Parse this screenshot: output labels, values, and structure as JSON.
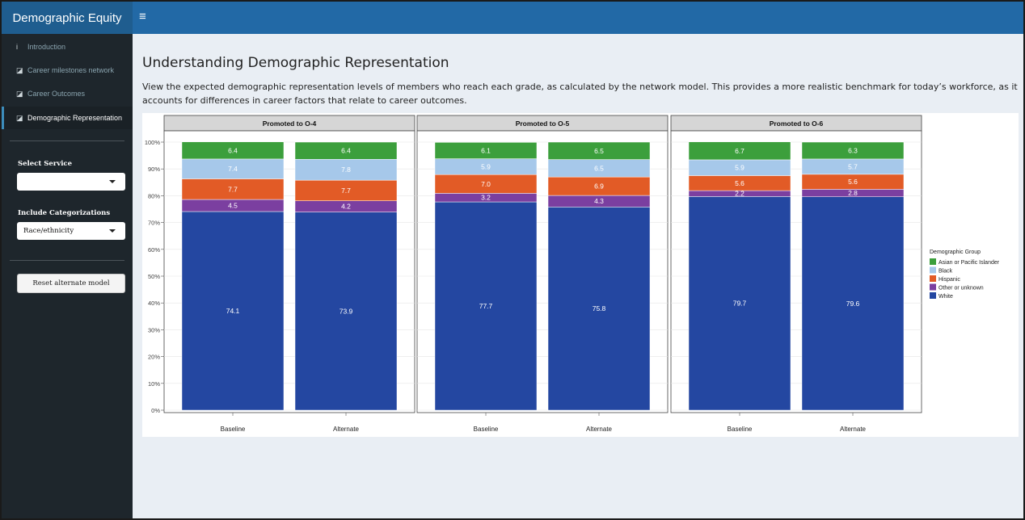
{
  "app": {
    "brand": "Demographic Equity",
    "menu_icon": "hamburger-icon",
    "menu_glyph": "≡"
  },
  "sidebar": {
    "items": [
      {
        "label": "Introduction",
        "icon": "info-icon",
        "glyph": "i"
      },
      {
        "label": "Career milestones network",
        "icon": "line-chart-icon",
        "glyph": "◪"
      },
      {
        "label": "Career Outcomes",
        "icon": "line-chart-icon",
        "glyph": "◪"
      },
      {
        "label": "Demographic Representation",
        "icon": "line-chart-icon",
        "glyph": "◪",
        "active": true
      }
    ],
    "select_service": {
      "label": "Select Service",
      "value": ""
    },
    "include_categorizations": {
      "label": "Include Categorizations",
      "value": "Race/ethnicity"
    },
    "reset_button": "Reset alternate model"
  },
  "main": {
    "title": "Understanding Demographic Representation",
    "description": "View the expected demographic representation levels of members who reach each grade, as calculated by the network model. This provides a more realistic benchmark for today’s workforce, as it accounts for differences in career factors that relate to career outcomes."
  },
  "chart_data": {
    "type": "bar",
    "stacked": true,
    "facets": [
      "Promoted to O-4",
      "Promoted to O-5",
      "Promoted to O-6"
    ],
    "categories": [
      "Baseline",
      "Alternate"
    ],
    "y_ticks": [
      "0%",
      "10%",
      "20%",
      "30%",
      "40%",
      "50%",
      "60%",
      "70%",
      "80%",
      "90%",
      "100%"
    ],
    "ylim": [
      0,
      100
    ],
    "legend_title": "Demographic Group",
    "legend_position": "right",
    "grid": true,
    "series": [
      {
        "name": "White",
        "color": "#2447a1",
        "values": [
          [
            74.1,
            73.9
          ],
          [
            77.7,
            75.8
          ],
          [
            79.7,
            79.6
          ]
        ]
      },
      {
        "name": "Other or unknown",
        "color": "#7b3fa0",
        "values": [
          [
            4.5,
            4.2
          ],
          [
            3.2,
            4.3
          ],
          [
            2.2,
            2.8
          ]
        ]
      },
      {
        "name": "Hispanic",
        "color": "#e25b26",
        "values": [
          [
            7.7,
            7.7
          ],
          [
            7.0,
            6.9
          ],
          [
            5.6,
            5.6
          ]
        ]
      },
      {
        "name": "Black",
        "color": "#a6c8ea",
        "values": [
          [
            7.4,
            7.8
          ],
          [
            5.9,
            6.5
          ],
          [
            5.9,
            5.7
          ]
        ]
      },
      {
        "name": "Asian or Pacific Islander",
        "color": "#3c9f3c",
        "values": [
          [
            6.4,
            6.4
          ],
          [
            6.1,
            6.5
          ],
          [
            6.7,
            6.3
          ]
        ]
      }
    ],
    "legend_order": [
      "Asian or Pacific Islander",
      "Black",
      "Hispanic",
      "Other or unknown",
      "White"
    ]
  }
}
